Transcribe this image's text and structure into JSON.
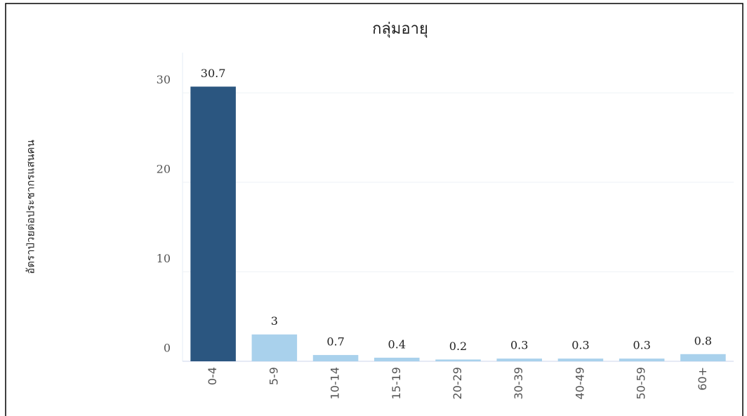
{
  "chart_data": {
    "type": "bar",
    "title": "กลุ่มอายุ",
    "y_label": "อัตราป่วยต่อประชากรแสนคน",
    "categories": [
      "0-4",
      "5-9",
      "10-14",
      "15-19",
      "20-29",
      "30-39",
      "40-49",
      "50-59",
      "60+"
    ],
    "values": [
      30.7,
      3,
      0.7,
      0.4,
      0.2,
      0.3,
      0.3,
      0.3,
      0.8
    ],
    "colors": [
      "#2b5680",
      "#a9d1ec",
      "#a9d1ec",
      "#a9d1ec",
      "#a9d1ec",
      "#a9d1ec",
      "#a9d1ec",
      "#a9d1ec",
      "#a9d1ec"
    ],
    "ylim": [
      0,
      34.5
    ],
    "yticks": [
      0,
      10,
      20,
      30
    ],
    "grid": true
  }
}
